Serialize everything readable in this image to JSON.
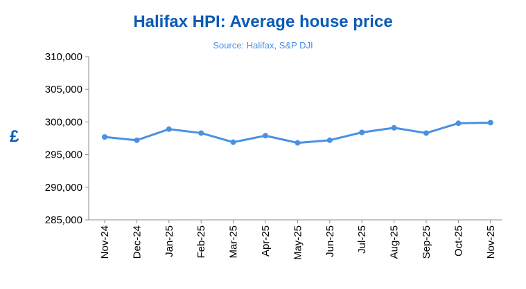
{
  "chart_data": {
    "type": "line",
    "title": "Halifax HPI: Average house price",
    "subtitle": "Source: Halifax,  S&P DJI",
    "ylabel": "£",
    "xlabel": "",
    "categories": [
      "Nov-24",
      "Dec-24",
      "Jan-25",
      "Feb-25",
      "Mar-25",
      "Apr-25",
      "May-25",
      "Jun-25",
      "Jul-25",
      "Aug-25",
      "Sep-25",
      "Oct-25",
      "Nov-25"
    ],
    "series": [
      {
        "values": [
          297700,
          297200,
          298900,
          298300,
          296900,
          297900,
          296800,
          297200,
          298400,
          299100,
          298300,
          299800,
          299900
        ]
      }
    ],
    "ylim": [
      285000,
      310000
    ],
    "yticks": [
      285000,
      290000,
      295000,
      300000,
      305000,
      310000
    ],
    "ytick_labels": [
      "285,000",
      "290,000",
      "295,000",
      "300,000",
      "305,000",
      "310,000"
    ],
    "grid": false,
    "legend": "none",
    "line_color": "#4a90e2"
  }
}
